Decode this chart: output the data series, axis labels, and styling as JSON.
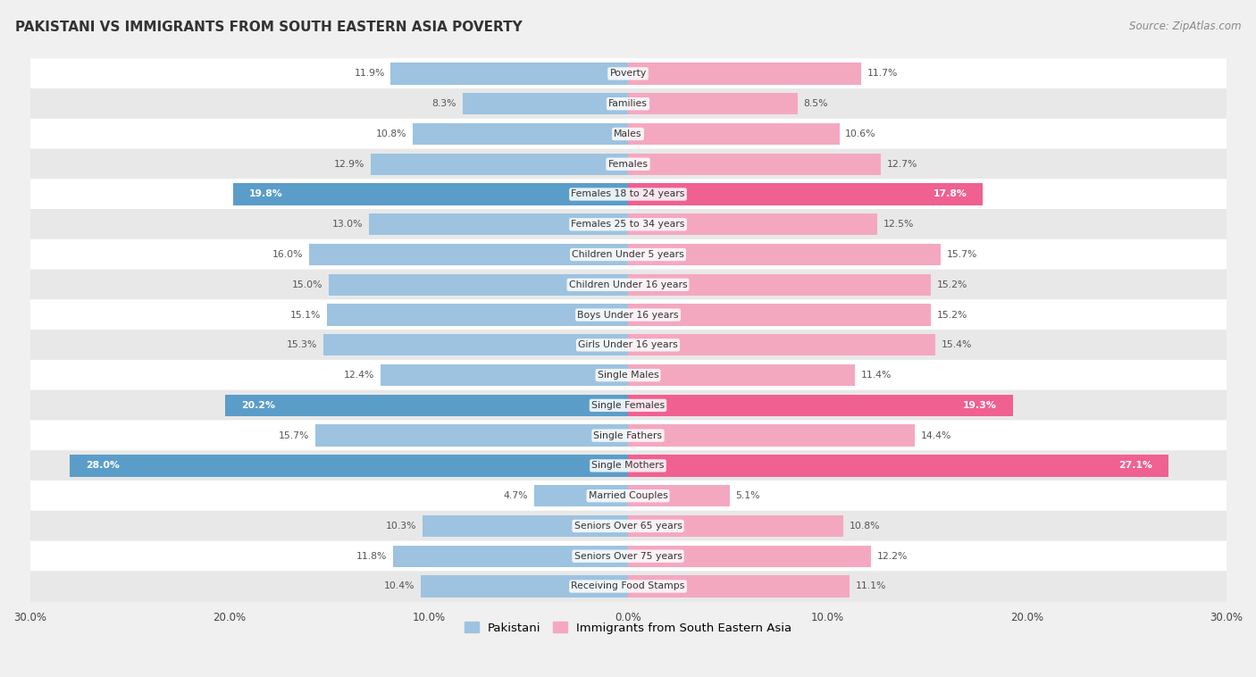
{
  "title": "PAKISTANI VS IMMIGRANTS FROM SOUTH EASTERN ASIA POVERTY",
  "source": "Source: ZipAtlas.com",
  "categories": [
    "Poverty",
    "Families",
    "Males",
    "Females",
    "Females 18 to 24 years",
    "Females 25 to 34 years",
    "Children Under 5 years",
    "Children Under 16 years",
    "Boys Under 16 years",
    "Girls Under 16 years",
    "Single Males",
    "Single Females",
    "Single Fathers",
    "Single Mothers",
    "Married Couples",
    "Seniors Over 65 years",
    "Seniors Over 75 years",
    "Receiving Food Stamps"
  ],
  "pakistani": [
    11.9,
    8.3,
    10.8,
    12.9,
    19.8,
    13.0,
    16.0,
    15.0,
    15.1,
    15.3,
    12.4,
    20.2,
    15.7,
    28.0,
    4.7,
    10.3,
    11.8,
    10.4
  ],
  "immigrants": [
    11.7,
    8.5,
    10.6,
    12.7,
    17.8,
    12.5,
    15.7,
    15.2,
    15.2,
    15.4,
    11.4,
    19.3,
    14.4,
    27.1,
    5.1,
    10.8,
    12.2,
    11.1
  ],
  "pakistani_color": "#9dc3e0",
  "immigrants_color": "#f4a8c0",
  "pakistani_highlight_indices": [
    4,
    11,
    13
  ],
  "immigrants_highlight_indices": [
    4,
    11,
    13
  ],
  "pakistani_highlight_color": "#5b9dc9",
  "immigrants_highlight_color": "#f06090",
  "background_color": "#f0f0f0",
  "row_color_odd": "#ffffff",
  "row_color_even": "#e8e8e8",
  "xlim": 30.0,
  "bar_height": 0.72,
  "legend_label_pakistani": "Pakistani",
  "legend_label_immigrants": "Immigrants from South Eastern Asia"
}
